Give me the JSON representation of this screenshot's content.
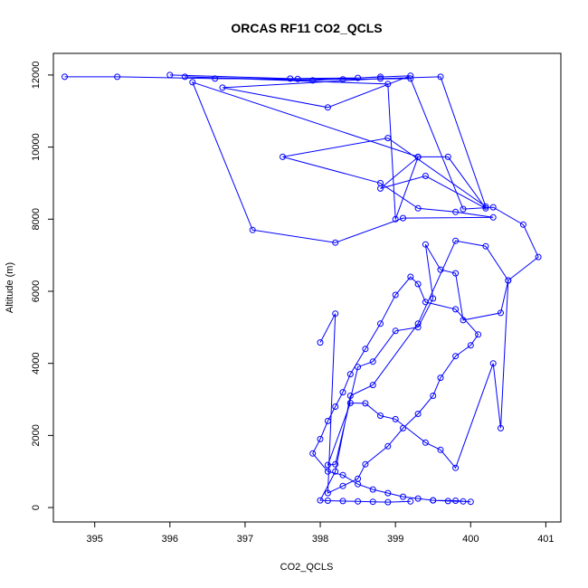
{
  "chart_data": {
    "type": "line",
    "title": "ORCAS RF11 CO2_QCLS",
    "xlabel": "CO2_QCLS",
    "ylabel": "Altitude (m)",
    "xlim": [
      394.45,
      401.2
    ],
    "ylim": [
      -400,
      12600
    ],
    "x_ticks": [
      395,
      396,
      397,
      398,
      399,
      400,
      401
    ],
    "y_ticks": [
      0,
      2000,
      4000,
      6000,
      8000,
      10000,
      12000
    ],
    "x_tick_labels": [
      "395",
      "396",
      "397",
      "398",
      "399",
      "400",
      "401"
    ],
    "y_tick_labels": [
      "0",
      "2000",
      "4000",
      "6000",
      "8000",
      "10000",
      "12000"
    ],
    "grid": false,
    "legend": "none",
    "colors": {
      "series": "#0000ff",
      "axes": "#000000",
      "background": "#ffffff"
    },
    "markers": "open-circle",
    "series": [
      {
        "x": [
          396.0,
          397.6,
          398.5,
          399.2,
          398.1,
          396.7,
          398.8,
          399.6,
          400.2,
          398.9,
          397.5,
          398.8,
          399.3,
          399.8,
          400.3,
          399.1,
          398.2,
          397.1,
          396.3,
          399.3,
          399.7,
          400.2,
          399.4,
          398.8,
          399.3,
          399.0,
          398.9,
          396.2,
          397.9,
          398.8
        ],
        "y": [
          12000,
          11900,
          11920,
          11980,
          11100,
          11650,
          11900,
          11950,
          8350,
          10250,
          9730,
          9000,
          8300,
          8200,
          8050,
          8030,
          7350,
          7700,
          11800,
          9730,
          9730,
          8300,
          9200,
          8850,
          9720,
          8000,
          11750,
          11950,
          11850,
          11950
        ]
      },
      {
        "x": [
          394.6,
          395.3,
          396.6,
          397.7,
          398.3,
          399.2,
          399.9,
          400.3,
          400.7,
          400.9,
          400.5,
          400.4,
          399.9,
          399.8,
          399.6,
          399.4,
          399.5,
          399.3,
          399.0,
          398.7,
          398.5,
          398.2,
          398.1,
          398.4,
          398.6,
          398.8,
          399.0,
          399.4,
          399.6,
          399.8,
          400.3,
          400.4,
          400.5,
          400.2,
          399.8,
          399.3,
          398.7,
          398.4,
          398.2,
          398.0,
          398.1,
          398.3,
          398.5,
          398.7,
          398.9,
          399.2
        ],
        "y": [
          11950,
          11950,
          11900,
          11890,
          11880,
          11900,
          8280,
          8330,
          7850,
          6950,
          6300,
          5400,
          5200,
          6500,
          6600,
          7300,
          5800,
          5000,
          4900,
          4050,
          3900,
          1200,
          1180,
          2900,
          2890,
          2550,
          2450,
          1800,
          1600,
          1100,
          4000,
          2200,
          6300,
          7250,
          7400,
          5100,
          3400,
          3100,
          1000,
          200,
          190,
          180,
          170,
          160,
          150,
          170
        ]
      },
      {
        "x": [
          398.0,
          398.2,
          398.1,
          398.3,
          398.5,
          398.6,
          398.9,
          399.1,
          399.3,
          399.5,
          399.6,
          399.8,
          400.0,
          400.1,
          399.8,
          399.4,
          399.3,
          399.2,
          399.0,
          398.8,
          398.6,
          398.4,
          398.3,
          398.2,
          398.1,
          398.0,
          397.9,
          398.1,
          398.3,
          398.5,
          398.7,
          398.9,
          399.1,
          399.3,
          399.5,
          399.7,
          399.9,
          400.0,
          399.8,
          399.5
        ],
        "y": [
          4580,
          5380,
          400,
          600,
          800,
          1200,
          1700,
          2200,
          2600,
          3100,
          3600,
          4200,
          4500,
          4800,
          5500,
          5700,
          6200,
          6400,
          5900,
          5100,
          4400,
          3700,
          3200,
          2800,
          2400,
          1900,
          1500,
          1000,
          900,
          650,
          500,
          400,
          300,
          250,
          200,
          180,
          170,
          160,
          190,
          200
        ]
      }
    ]
  }
}
